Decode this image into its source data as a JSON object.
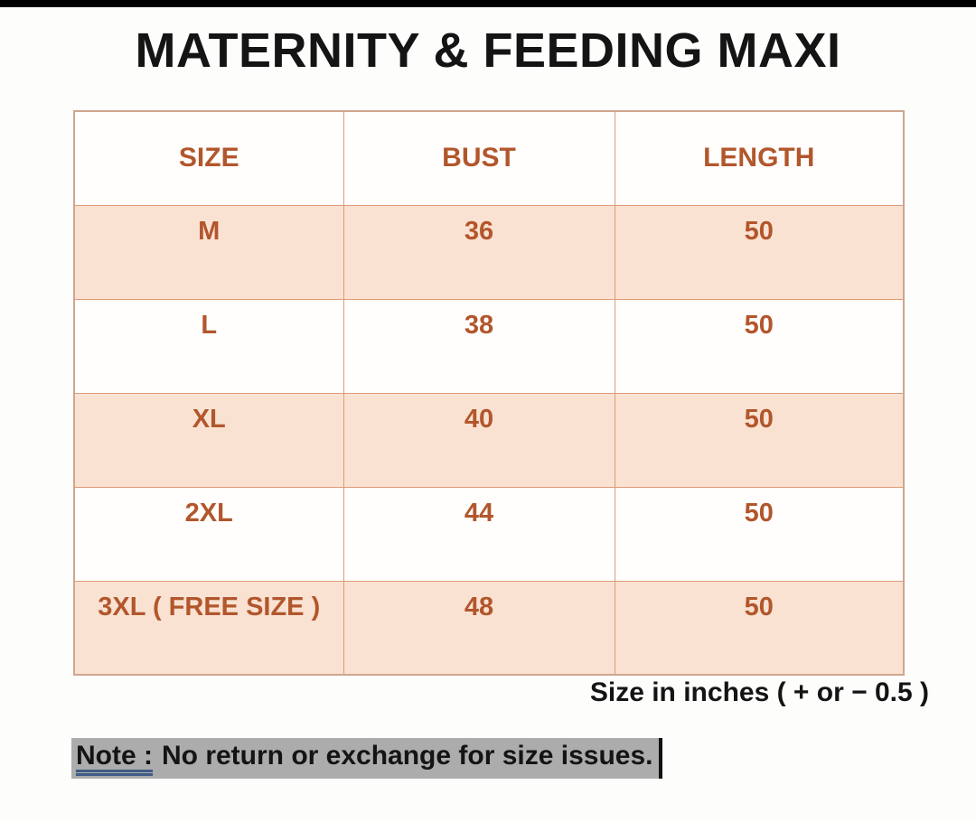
{
  "page": {
    "title": "MATERNITY & FEEDING MAXI"
  },
  "size_chart": {
    "columns": {
      "size": "SIZE",
      "bust": "BUST",
      "length": "LENGTH"
    },
    "rows": [
      {
        "size": "M",
        "bust": "36",
        "length": "50"
      },
      {
        "size": "L",
        "bust": "38",
        "length": "50"
      },
      {
        "size": "XL",
        "bust": "40",
        "length": "50"
      },
      {
        "size": "2XL",
        "bust": "44",
        "length": "50"
      },
      {
        "size": "3XL ( FREE SIZE )",
        "bust": "48",
        "length": "50"
      }
    ]
  },
  "footnotes": {
    "units_note": "Size in inches ( + or − 0.5 )",
    "note_label": "Note :",
    "note_body": "No return or exchange for size issues."
  },
  "colors": {
    "accent_text": "#b2562c",
    "row_highlight_bg": "#fae2d2",
    "table_border": "#dd9a78",
    "note_highlight_bg": "#acacac",
    "note_underline": "#3e5c85",
    "top_strip": "#000000"
  },
  "chart_data": {
    "type": "table",
    "title": "MATERNITY & FEEDING MAXI",
    "columns": [
      "SIZE",
      "BUST",
      "LENGTH"
    ],
    "rows": [
      [
        "M",
        36,
        50
      ],
      [
        "L",
        38,
        50
      ],
      [
        "XL",
        40,
        50
      ],
      [
        "2XL",
        44,
        50
      ],
      [
        "3XL ( FREE SIZE )",
        48,
        50
      ]
    ],
    "units": "inches",
    "tolerance": "+ or − 0.5"
  }
}
